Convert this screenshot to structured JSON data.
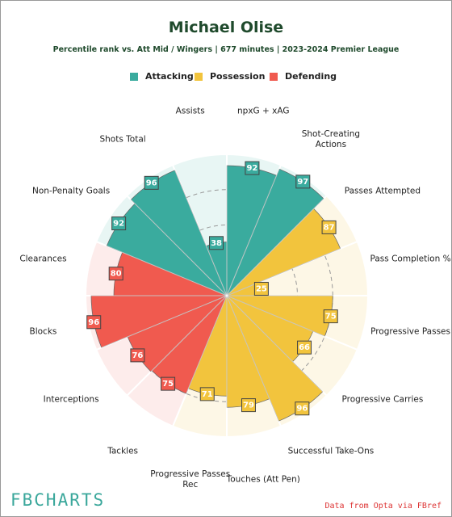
{
  "chart_data": {
    "type": "radial-bar",
    "title": "Michael Olise",
    "subtitle": "Percentile rank vs. Att Mid / Wingers | 677 minutes | 2023-2024 Premier League",
    "categories": [
      "npxG + xAG",
      "Shot-Creating Actions",
      "Passes Attempted",
      "Pass Completion %",
      "Progressive Passes",
      "Progressive Carries",
      "Successful Take-Ons",
      "Touches (Att Pen)",
      "Progressive Passes Rec",
      "Tackles",
      "Interceptions",
      "Blocks",
      "Clearances",
      "Non-Penalty Goals",
      "Shots Total",
      "Assists"
    ],
    "series": [
      {
        "name": "Attacking",
        "color": "#3aab9e",
        "background": "#e8f6f4",
        "values": [
          92,
          97,
          null,
          null,
          null,
          null,
          null,
          null,
          null,
          null,
          null,
          null,
          null,
          92,
          96,
          38
        ]
      },
      {
        "name": "Possession",
        "color": "#f2c43d",
        "background": "#fdf7e6",
        "values": [
          null,
          null,
          87,
          25,
          75,
          66,
          96,
          79,
          71,
          null,
          null,
          null,
          null,
          null,
          null,
          null
        ]
      },
      {
        "name": "Defending",
        "color": "#f05a4f",
        "background": "#fdeceb",
        "values": [
          null,
          null,
          null,
          null,
          null,
          null,
          null,
          null,
          null,
          75,
          76,
          96,
          80,
          null,
          null,
          null
        ]
      }
    ],
    "rlim": [
      0,
      100
    ],
    "rticks": [
      25,
      50,
      75
    ]
  },
  "footer": {
    "brand": "FBCHARTS",
    "source": "Data from Opta via FBref"
  }
}
